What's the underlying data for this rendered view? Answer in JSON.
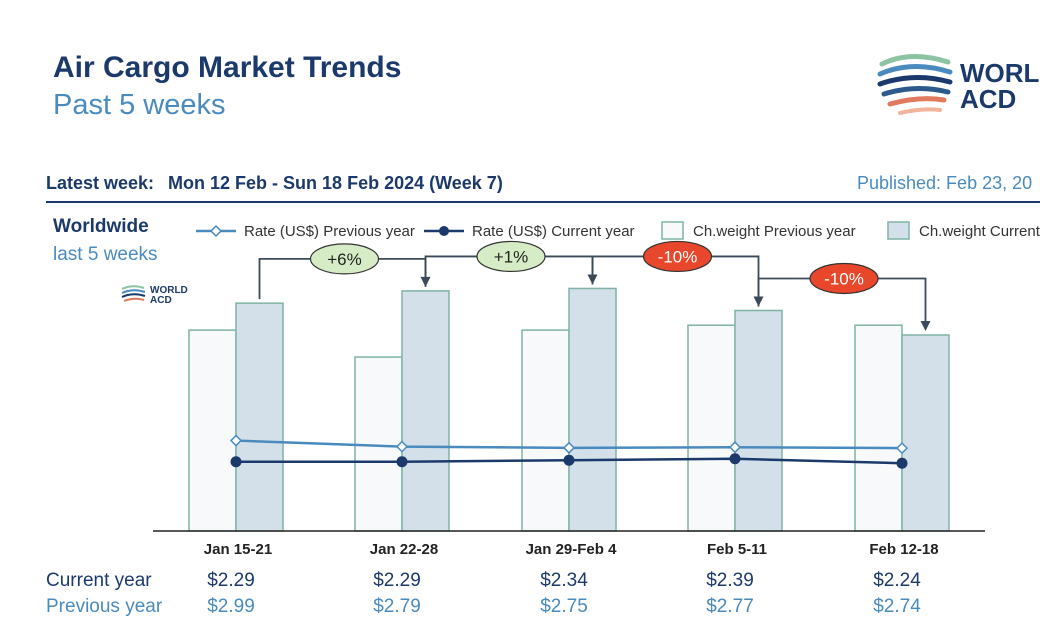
{
  "header": {
    "title": "Air Cargo Market Trends",
    "subtitle": "Past 5 weeks",
    "latest_week_label": "Latest week:",
    "latest_week_value": "Mon 12 Feb - Sun 18 Feb 2024 (Week 7)",
    "published": "Published: Feb 23, 20"
  },
  "logo": {
    "line1": "WORLD",
    "line2": "ACD"
  },
  "region": {
    "name": "Worldwide",
    "period": "last 5 weeks"
  },
  "legend": {
    "rate_prev": "Rate (US$) Previous year",
    "rate_cur": "Rate (US$) Current year",
    "cw_prev": "Ch.weight Previous year",
    "cw_cur": "Ch.weight Current"
  },
  "colors": {
    "navy": "#1b3a6b",
    "light_blue": "#4a8bbf",
    "bar_prev_fill": "#f7f9fa",
    "bar_cur_fill": "#d3dfe9",
    "bar_stroke": "#7fb3a6",
    "pos_badge": "#d5ecc6",
    "neg_badge": "#e8472b"
  },
  "table": {
    "current_label": "Current year",
    "previous_label": "Previous year"
  },
  "chart_data": {
    "type": "bar",
    "categories": [
      "Jan 15-21",
      "Jan 22-28",
      "Jan 29-Feb 4",
      "Feb 5-11",
      "Feb 12-18"
    ],
    "series": [
      {
        "name": "Ch.weight Previous year",
        "kind": "bar",
        "values": [
          82,
          71,
          82,
          84,
          84
        ]
      },
      {
        "name": "Ch.weight Current",
        "kind": "bar",
        "values": [
          93,
          98,
          99,
          90,
          80
        ]
      },
      {
        "name": "Rate (US$) Previous year",
        "kind": "line",
        "values": [
          2.99,
          2.79,
          2.75,
          2.77,
          2.74
        ],
        "labels": [
          "$2.99",
          "$2.79",
          "$2.75",
          "$2.77",
          "$2.74"
        ]
      },
      {
        "name": "Rate (US$) Current year",
        "kind": "line",
        "values": [
          2.29,
          2.29,
          2.34,
          2.39,
          2.24
        ],
        "labels": [
          "$2.29",
          "$2.29",
          "$2.34",
          "$2.39",
          "$2.24"
        ]
      }
    ],
    "changes": [
      {
        "from": 0,
        "to": 1,
        "label": "+6%",
        "sign": "positive"
      },
      {
        "from": 1,
        "to": 2,
        "label": "+1%",
        "sign": "positive"
      },
      {
        "from": 2,
        "to": 3,
        "label": "-10%",
        "sign": "negative"
      },
      {
        "from": 3,
        "to": 4,
        "label": "-10%",
        "sign": "negative"
      }
    ],
    "bar_ylim": [
      0,
      100
    ],
    "rate_ylim": [
      0,
      8.1
    ],
    "grid": false,
    "legend_position": "top"
  }
}
